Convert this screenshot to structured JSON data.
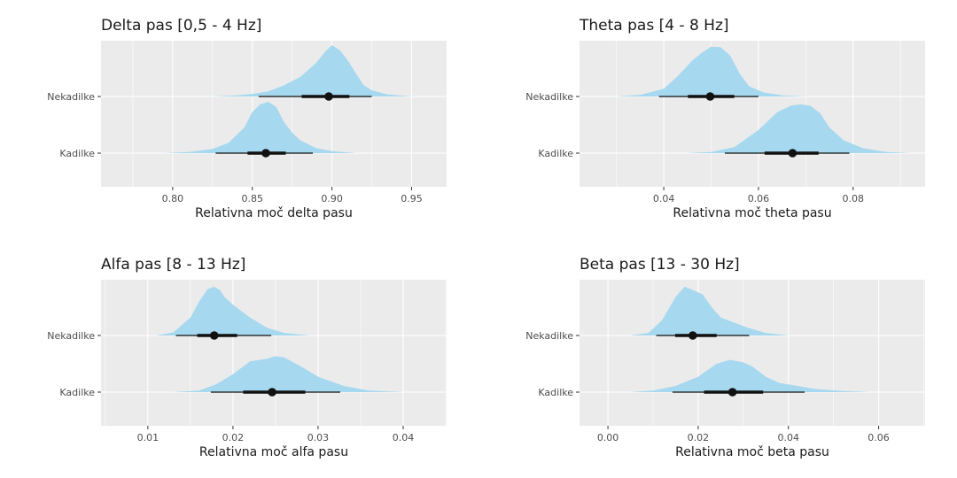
{
  "colors": {
    "panel_background": "#ebebeb",
    "grid": "#ffffff",
    "density_fill": "#a6d8f0",
    "interval": "#111111"
  },
  "chart_data": [
    {
      "type": "area",
      "title": "Delta pas [0,5 - 4 Hz]",
      "xlabel": "Relativna moč delta pasu",
      "ylabel": "",
      "xlim": [
        0.755,
        0.972
      ],
      "xticks": [
        0.8,
        0.85,
        0.9,
        0.95
      ],
      "xtick_labels": [
        "0.80",
        "0.85",
        "0.90",
        "0.95"
      ],
      "categories": [
        "Nekadilke",
        "Kadilke"
      ],
      "grid": true,
      "series": [
        {
          "name": "Nekadilke",
          "median": 0.898,
          "interval_inner": [
            0.881,
            0.911
          ],
          "interval_outer": [
            0.854,
            0.925
          ],
          "density": [
            [
              0.825,
              0
            ],
            [
              0.84,
              0.02
            ],
            [
              0.85,
              0.05
            ],
            [
              0.86,
              0.1
            ],
            [
              0.87,
              0.22
            ],
            [
              0.88,
              0.38
            ],
            [
              0.89,
              0.65
            ],
            [
              0.896,
              0.88
            ],
            [
              0.9,
              1.0
            ],
            [
              0.905,
              0.9
            ],
            [
              0.91,
              0.7
            ],
            [
              0.915,
              0.45
            ],
            [
              0.92,
              0.22
            ],
            [
              0.925,
              0.12
            ],
            [
              0.935,
              0.04
            ],
            [
              0.95,
              0
            ]
          ]
        },
        {
          "name": "Kadilke",
          "median": 0.8585,
          "interval_inner": [
            0.847,
            0.871
          ],
          "interval_outer": [
            0.827,
            0.888
          ],
          "density": [
            [
              0.795,
              0
            ],
            [
              0.81,
              0.02
            ],
            [
              0.825,
              0.08
            ],
            [
              0.835,
              0.2
            ],
            [
              0.845,
              0.5
            ],
            [
              0.85,
              0.8
            ],
            [
              0.855,
              0.95
            ],
            [
              0.86,
              1.0
            ],
            [
              0.865,
              0.9
            ],
            [
              0.87,
              0.6
            ],
            [
              0.875,
              0.4
            ],
            [
              0.88,
              0.25
            ],
            [
              0.89,
              0.1
            ],
            [
              0.9,
              0.04
            ],
            [
              0.915,
              0
            ]
          ]
        }
      ]
    },
    {
      "type": "area",
      "title": "Theta pas [4 - 8 Hz]",
      "xlabel": "Relativna moč theta pasu",
      "ylabel": "",
      "xlim": [
        0.0222,
        0.0952
      ],
      "xticks": [
        0.04,
        0.06,
        0.08
      ],
      "xtick_labels": [
        "0.04",
        "0.06",
        "0.08"
      ],
      "categories": [
        "Nekadilke",
        "Kadilke"
      ],
      "grid": true,
      "series": [
        {
          "name": "Nekadilke",
          "median": 0.0498,
          "interval_inner": [
            0.0451,
            0.0549
          ],
          "interval_outer": [
            0.039,
            0.06
          ],
          "density": [
            [
              0.03,
              0
            ],
            [
              0.035,
              0.03
            ],
            [
              0.04,
              0.15
            ],
            [
              0.043,
              0.4
            ],
            [
              0.046,
              0.7
            ],
            [
              0.048,
              0.85
            ],
            [
              0.05,
              0.97
            ],
            [
              0.052,
              0.96
            ],
            [
              0.054,
              0.8
            ],
            [
              0.056,
              0.45
            ],
            [
              0.058,
              0.2
            ],
            [
              0.061,
              0.08
            ],
            [
              0.065,
              0.02
            ],
            [
              0.07,
              0
            ]
          ]
        },
        {
          "name": "Kadilke",
          "median": 0.0672,
          "interval_inner": [
            0.0613,
            0.0727
          ],
          "interval_outer": [
            0.0529,
            0.0792
          ],
          "density": [
            [
              0.045,
              0
            ],
            [
              0.05,
              0.02
            ],
            [
              0.055,
              0.12
            ],
            [
              0.06,
              0.45
            ],
            [
              0.064,
              0.8
            ],
            [
              0.067,
              0.93
            ],
            [
              0.069,
              0.95
            ],
            [
              0.071,
              0.92
            ],
            [
              0.073,
              0.78
            ],
            [
              0.075,
              0.5
            ],
            [
              0.078,
              0.25
            ],
            [
              0.082,
              0.1
            ],
            [
              0.087,
              0.02
            ],
            [
              0.092,
              0
            ]
          ]
        }
      ]
    },
    {
      "type": "area",
      "title": "Alfa pas [8 - 13 Hz]",
      "xlabel": "Relativna moč alfa pasu",
      "ylabel": "",
      "xlim": [
        0.0045,
        0.0451
      ],
      "xticks": [
        0.01,
        0.02,
        0.03,
        0.04
      ],
      "xtick_labels": [
        "0.01",
        "0.02",
        "0.03",
        "0.04"
      ],
      "categories": [
        "Nekadilke",
        "Kadilke"
      ],
      "grid": true,
      "series": [
        {
          "name": "Nekadilke",
          "median": 0.0178,
          "interval_inner": [
            0.0158,
            0.0205
          ],
          "interval_outer": [
            0.0133,
            0.0245
          ],
          "density": [
            [
              0.011,
              0
            ],
            [
              0.013,
              0.06
            ],
            [
              0.015,
              0.35
            ],
            [
              0.016,
              0.65
            ],
            [
              0.017,
              0.9
            ],
            [
              0.0178,
              0.95
            ],
            [
              0.0185,
              0.88
            ],
            [
              0.019,
              0.75
            ],
            [
              0.02,
              0.6
            ],
            [
              0.022,
              0.35
            ],
            [
              0.024,
              0.15
            ],
            [
              0.026,
              0.05
            ],
            [
              0.029,
              0
            ]
          ]
        },
        {
          "name": "Kadilke",
          "median": 0.0246,
          "interval_inner": [
            0.0212,
            0.0285
          ],
          "interval_outer": [
            0.0174,
            0.0326
          ],
          "density": [
            [
              0.013,
              0
            ],
            [
              0.016,
              0.03
            ],
            [
              0.018,
              0.15
            ],
            [
              0.02,
              0.35
            ],
            [
              0.022,
              0.6
            ],
            [
              0.024,
              0.65
            ],
            [
              0.025,
              0.7
            ],
            [
              0.026,
              0.68
            ],
            [
              0.028,
              0.5
            ],
            [
              0.03,
              0.3
            ],
            [
              0.033,
              0.12
            ],
            [
              0.036,
              0.03
            ],
            [
              0.04,
              0
            ]
          ]
        }
      ]
    },
    {
      "type": "area",
      "title": "Beta pas [13 - 30 Hz]",
      "xlabel": "Relativna moč beta pasu",
      "ylabel": "",
      "xlim": [
        -0.0063,
        0.0703
      ],
      "xticks": [
        0.0,
        0.02,
        0.04,
        0.06
      ],
      "xtick_labels": [
        "0.00",
        "0.02",
        "0.04",
        "0.06"
      ],
      "categories": [
        "Nekadilke",
        "Kadilke"
      ],
      "grid": true,
      "series": [
        {
          "name": "Nekadilke",
          "median": 0.0188,
          "interval_inner": [
            0.0149,
            0.0241
          ],
          "interval_outer": [
            0.0107,
            0.0313
          ],
          "density": [
            [
              0.005,
              0
            ],
            [
              0.009,
              0.05
            ],
            [
              0.012,
              0.3
            ],
            [
              0.015,
              0.75
            ],
            [
              0.017,
              0.95
            ],
            [
              0.019,
              0.88
            ],
            [
              0.021,
              0.8
            ],
            [
              0.023,
              0.55
            ],
            [
              0.025,
              0.35
            ],
            [
              0.028,
              0.25
            ],
            [
              0.031,
              0.15
            ],
            [
              0.035,
              0.05
            ],
            [
              0.04,
              0
            ]
          ]
        },
        {
          "name": "Kadilke",
          "median": 0.0276,
          "interval_inner": [
            0.0213,
            0.0344
          ],
          "interval_outer": [
            0.0143,
            0.0436
          ],
          "density": [
            [
              0.005,
              0
            ],
            [
              0.01,
              0.03
            ],
            [
              0.015,
              0.12
            ],
            [
              0.02,
              0.3
            ],
            [
              0.024,
              0.55
            ],
            [
              0.027,
              0.63
            ],
            [
              0.03,
              0.58
            ],
            [
              0.032,
              0.5
            ],
            [
              0.035,
              0.3
            ],
            [
              0.038,
              0.18
            ],
            [
              0.042,
              0.12
            ],
            [
              0.046,
              0.06
            ],
            [
              0.052,
              0.02
            ],
            [
              0.058,
              0
            ]
          ]
        }
      ]
    }
  ]
}
